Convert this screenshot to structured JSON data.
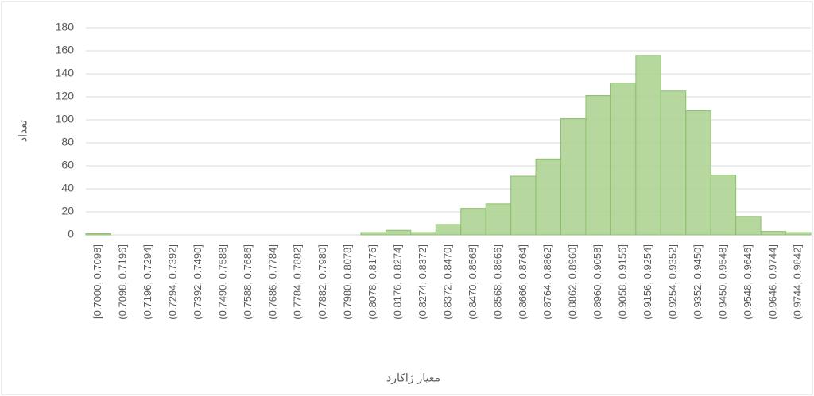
{
  "chart_data": {
    "type": "bar",
    "x_label": "معیار ژاکارد",
    "y_label": "تعداد",
    "categories": [
      "[0.7000, 0.7098]",
      "(0.7098, 0.7196]",
      "(0.7196, 0.7294]",
      "(0.7294, 0.7392]",
      "(0.7392, 0.7490]",
      "(0.7490, 0.7588]",
      "(0.7588, 0.7686]",
      "(0.7686, 0.7784]",
      "(0.7784, 0.7882]",
      "(0.7882, 0.7980]",
      "(0.7980, 0.8078]",
      "(0.8078, 0.8176]",
      "(0.8176, 0.8274]",
      "(0.8274, 0.8372]",
      "(0.8372, 0.8470]",
      "(0.8470, 0.8568]",
      "(0.8568, 0.8666]",
      "(0.8666, 0.8764]",
      "(0.8764, 0.8862]",
      "(0.8862, 0.8960]",
      "(0.8960, 0.9058]",
      "(0.9058, 0.9156]",
      "(0.9156, 0.9254]",
      "(0.9254, 0.9352]",
      "(0.9352, 0.9450]",
      "(0.9450, 0.9548]",
      "(0.9548, 0.9646]",
      "(0.9646, 0.9744]",
      "(0.9744, 0.9842]"
    ],
    "values": [
      1,
      0,
      0,
      0,
      0,
      0,
      0,
      0,
      0,
      0,
      0,
      2,
      4,
      2,
      9,
      23,
      27,
      51,
      66,
      101,
      121,
      132,
      156,
      125,
      108,
      52,
      16,
      3,
      2
    ],
    "color": "#a9d18e",
    "ylim": [
      0,
      180
    ],
    "yticks": [
      0,
      20,
      40,
      60,
      80,
      100,
      120,
      140,
      160,
      180
    ],
    "grid": true
  }
}
